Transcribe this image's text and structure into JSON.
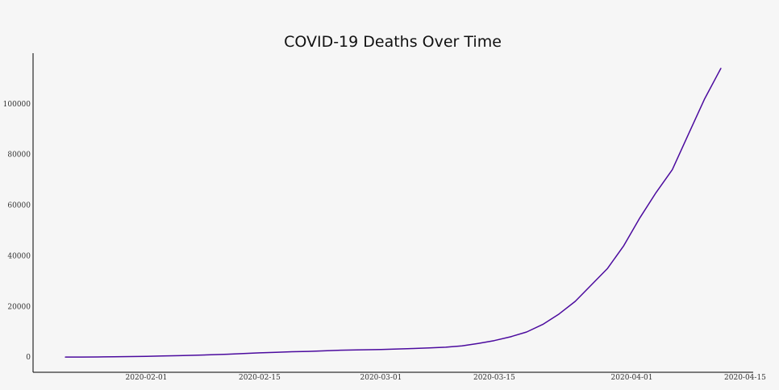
{
  "chart_data": {
    "type": "line",
    "title": "COVID-19 Deaths Over Time",
    "xlabel": "",
    "ylabel": "",
    "grid": false,
    "xlim": [
      "2020-01-18",
      "2020-04-16"
    ],
    "ylim": [
      -6000,
      120000
    ],
    "x_ticks": [
      "2020-02-01",
      "2020-02-15",
      "2020-03-01",
      "2020-03-15",
      "2020-04-01",
      "2020-04-15"
    ],
    "y_ticks": [
      0,
      20000,
      40000,
      60000,
      80000,
      100000
    ],
    "colors": {
      "line": "#4b0a9e"
    },
    "series": [
      {
        "x": [
          "2020-01-22",
          "2020-01-24",
          "2020-01-26",
          "2020-01-28",
          "2020-01-30",
          "2020-02-01",
          "2020-02-03",
          "2020-02-05",
          "2020-02-07",
          "2020-02-09",
          "2020-02-11",
          "2020-02-13",
          "2020-02-15",
          "2020-02-17",
          "2020-02-19",
          "2020-02-21",
          "2020-02-23",
          "2020-02-25",
          "2020-02-27",
          "2020-03-01",
          "2020-03-03",
          "2020-03-05",
          "2020-03-07",
          "2020-03-09",
          "2020-03-11",
          "2020-03-13",
          "2020-03-15",
          "2020-03-17",
          "2020-03-19",
          "2020-03-21",
          "2020-03-23",
          "2020-03-25",
          "2020-03-27",
          "2020-03-29",
          "2020-03-31",
          "2020-04-02",
          "2020-04-04",
          "2020-04-06",
          "2020-04-08",
          "2020-04-10",
          "2020-04-12"
        ],
        "values": [
          17,
          26,
          56,
          132,
          213,
          259,
          427,
          565,
          724,
          905,
          1115,
          1383,
          1666,
          1873,
          2126,
          2251,
          2469,
          2705,
          2810,
          3000,
          3200,
          3400,
          3600,
          3900,
          4400,
          5400,
          6500,
          8000,
          9900,
          12900,
          17000,
          22000,
          28500,
          35000,
          44000,
          55000,
          65000,
          74000,
          88000,
          102000,
          114000
        ]
      }
    ]
  }
}
